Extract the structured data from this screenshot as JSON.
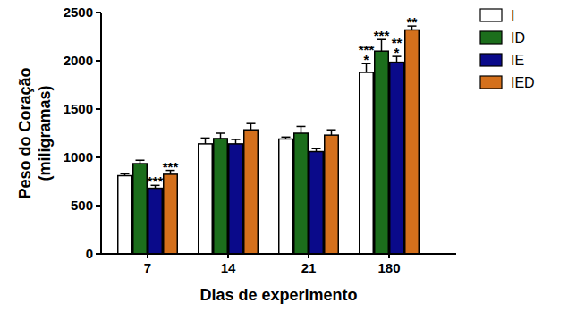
{
  "chart_data": {
    "type": "bar",
    "x_label": "Dias de experimento",
    "y_label": [
      "Peso do Coração",
      "(miligramas)"
    ],
    "categories": [
      "7",
      "14",
      "21",
      "180"
    ],
    "series": [
      {
        "name": "I",
        "color": "#ffffff",
        "values": [
          810,
          1140,
          1190,
          1880
        ],
        "errors": [
          20,
          60,
          20,
          90
        ],
        "significance": [
          null,
          null,
          null,
          [
            "***",
            "*"
          ]
        ]
      },
      {
        "name": "ID",
        "color": "#1c6e1c",
        "values": [
          935,
          1195,
          1250,
          2100
        ],
        "errors": [
          35,
          55,
          70,
          120
        ],
        "significance": [
          null,
          null,
          null,
          [
            "***"
          ]
        ]
      },
      {
        "name": "IE",
        "color": "#0a0a8a",
        "values": [
          680,
          1140,
          1060,
          1985
        ],
        "errors": [
          30,
          45,
          30,
          60
        ],
        "significance": [
          [
            "***"
          ],
          null,
          null,
          [
            "**",
            "*"
          ]
        ]
      },
      {
        "name": "IED",
        "color": "#d4701c",
        "values": [
          825,
          1285,
          1230,
          2320
        ],
        "errors": [
          40,
          65,
          55,
          40
        ],
        "significance": [
          [
            "***"
          ],
          null,
          null,
          [
            "**"
          ]
        ]
      }
    ],
    "ylim": [
      0,
      2500
    ],
    "yticks": [
      0,
      500,
      1000,
      1500,
      2000,
      2500
    ],
    "legend": "right"
  }
}
